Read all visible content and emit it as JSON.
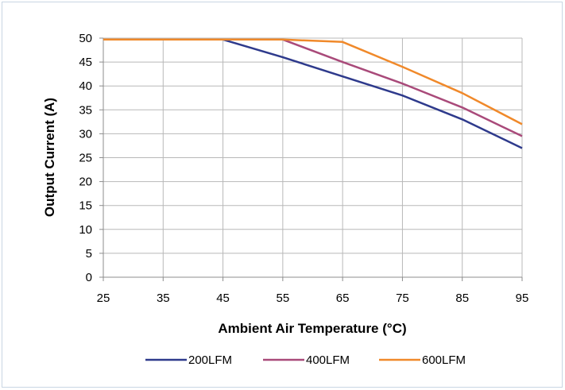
{
  "chart_data": {
    "type": "line",
    "title": "",
    "xlabel": "Ambient Air Temperature (°C)",
    "ylabel": "Output Current (A)",
    "x": [
      25,
      35,
      45,
      55,
      65,
      75,
      85,
      95
    ],
    "xlim": [
      25,
      95
    ],
    "ylim": [
      0,
      50
    ],
    "xticks": [
      25,
      35,
      45,
      55,
      65,
      75,
      85,
      95
    ],
    "yticks": [
      0,
      5,
      10,
      15,
      20,
      25,
      30,
      35,
      40,
      45,
      50
    ],
    "grid": true,
    "legend_position": "bottom",
    "series": [
      {
        "name": "200LFM",
        "color": "#2e3a8c",
        "points": [
          [
            25,
            49.7
          ],
          [
            45,
            49.7
          ],
          [
            55,
            46
          ],
          [
            65,
            42
          ],
          [
            75,
            38
          ],
          [
            85,
            33
          ],
          [
            95,
            27
          ]
        ]
      },
      {
        "name": "400LFM",
        "color": "#a94a7a",
        "points": [
          [
            25,
            49.7
          ],
          [
            55,
            49.7
          ],
          [
            65,
            45
          ],
          [
            75,
            40.5
          ],
          [
            85,
            35.5
          ],
          [
            95,
            29.5
          ]
        ]
      },
      {
        "name": "600LFM",
        "color": "#f0892a",
        "points": [
          [
            25,
            49.7
          ],
          [
            55,
            49.7
          ],
          [
            65,
            49.2
          ],
          [
            75,
            44
          ],
          [
            85,
            38.5
          ],
          [
            95,
            32
          ]
        ]
      }
    ]
  }
}
